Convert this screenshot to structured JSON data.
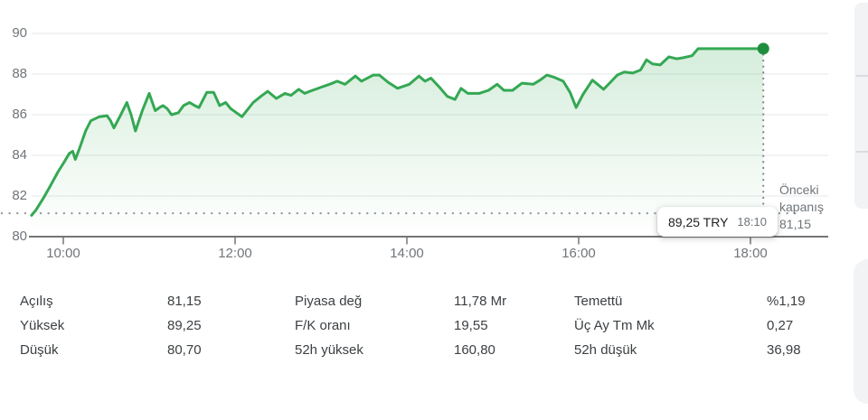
{
  "chart_data": {
    "type": "line",
    "title": "",
    "currency": "TRY",
    "legend": "none",
    "grid": "horizontal-light",
    "x_axis": {
      "unit": "time-of-day",
      "range": [
        9.6,
        18.3
      ],
      "ticks": [
        {
          "t": 10,
          "label": "10:00"
        },
        {
          "t": 12,
          "label": "12:00"
        },
        {
          "t": 14,
          "label": "14:00"
        },
        {
          "t": 16,
          "label": "16:00"
        },
        {
          "t": 18,
          "label": "18:00"
        }
      ]
    },
    "y_axis": {
      "unit": "TRY",
      "range": [
        80,
        90.5
      ],
      "ticks": [
        {
          "v": 90,
          "label": "90"
        },
        {
          "v": 88,
          "label": "88"
        },
        {
          "v": 86,
          "label": "86"
        },
        {
          "v": 84,
          "label": "84"
        },
        {
          "v": 82,
          "label": "82"
        },
        {
          "v": 80,
          "label": "80"
        }
      ]
    },
    "previous_close": {
      "value": 81.15,
      "label": "Önceki\nkapanış\n81,15"
    },
    "last": {
      "price": 89.25,
      "price_label": "89,25 TRY",
      "time_label": "18:10"
    },
    "colors": {
      "line": "#34a853",
      "dot": "#1e8e3e",
      "area_top": "rgba(52,168,83,0.22)",
      "area_bottom": "rgba(52,168,83,0)",
      "grid": "#f1f3f4",
      "axis": "#757575",
      "dotted": "#9aa0a6",
      "crosshair": "#80868b"
    },
    "points": [
      [
        9.63,
        81.05
      ],
      [
        9.68,
        81.3
      ],
      [
        9.77,
        81.9
      ],
      [
        9.85,
        82.5
      ],
      [
        9.94,
        83.2
      ],
      [
        10.0,
        83.6
      ],
      [
        10.07,
        84.1
      ],
      [
        10.11,
        84.2
      ],
      [
        10.14,
        83.8
      ],
      [
        10.19,
        84.35
      ],
      [
        10.26,
        85.2
      ],
      [
        10.32,
        85.7
      ],
      [
        10.42,
        85.9
      ],
      [
        10.51,
        85.95
      ],
      [
        10.55,
        85.7
      ],
      [
        10.59,
        85.35
      ],
      [
        10.67,
        86.0
      ],
      [
        10.74,
        86.6
      ],
      [
        10.79,
        86.0
      ],
      [
        10.84,
        85.2
      ],
      [
        10.92,
        86.2
      ],
      [
        11.0,
        87.05
      ],
      [
        11.07,
        86.2
      ],
      [
        11.12,
        86.35
      ],
      [
        11.16,
        86.45
      ],
      [
        11.21,
        86.3
      ],
      [
        11.26,
        86.0
      ],
      [
        11.34,
        86.1
      ],
      [
        11.4,
        86.45
      ],
      [
        11.47,
        86.6
      ],
      [
        11.53,
        86.45
      ],
      [
        11.58,
        86.35
      ],
      [
        11.67,
        87.1
      ],
      [
        11.75,
        87.1
      ],
      [
        11.82,
        86.45
      ],
      [
        11.89,
        86.6
      ],
      [
        11.95,
        86.3
      ],
      [
        12.08,
        85.9
      ],
      [
        12.21,
        86.6
      ],
      [
        12.3,
        86.9
      ],
      [
        12.38,
        87.15
      ],
      [
        12.48,
        86.8
      ],
      [
        12.58,
        87.05
      ],
      [
        12.65,
        86.95
      ],
      [
        12.74,
        87.25
      ],
      [
        12.81,
        87.05
      ],
      [
        12.87,
        87.15
      ],
      [
        13.0,
        87.35
      ],
      [
        13.1,
        87.5
      ],
      [
        13.19,
        87.65
      ],
      [
        13.28,
        87.5
      ],
      [
        13.4,
        87.9
      ],
      [
        13.47,
        87.65
      ],
      [
        13.61,
        87.95
      ],
      [
        13.68,
        87.95
      ],
      [
        13.78,
        87.6
      ],
      [
        13.89,
        87.3
      ],
      [
        14.03,
        87.5
      ],
      [
        14.14,
        87.9
      ],
      [
        14.21,
        87.65
      ],
      [
        14.28,
        87.8
      ],
      [
        14.38,
        87.35
      ],
      [
        14.47,
        86.9
      ],
      [
        14.56,
        86.75
      ],
      [
        14.63,
        87.3
      ],
      [
        14.71,
        87.05
      ],
      [
        14.84,
        87.05
      ],
      [
        14.95,
        87.2
      ],
      [
        15.05,
        87.5
      ],
      [
        15.13,
        87.2
      ],
      [
        15.23,
        87.2
      ],
      [
        15.34,
        87.55
      ],
      [
        15.47,
        87.5
      ],
      [
        15.55,
        87.7
      ],
      [
        15.63,
        87.95
      ],
      [
        15.71,
        87.85
      ],
      [
        15.82,
        87.65
      ],
      [
        15.9,
        87.1
      ],
      [
        15.97,
        86.35
      ],
      [
        16.05,
        87.0
      ],
      [
        16.16,
        87.7
      ],
      [
        16.22,
        87.5
      ],
      [
        16.29,
        87.25
      ],
      [
        16.37,
        87.6
      ],
      [
        16.45,
        87.95
      ],
      [
        16.53,
        88.1
      ],
      [
        16.63,
        88.05
      ],
      [
        16.72,
        88.2
      ],
      [
        16.79,
        88.7
      ],
      [
        16.86,
        88.5
      ],
      [
        16.95,
        88.45
      ],
      [
        17.05,
        88.85
      ],
      [
        17.14,
        88.75
      ],
      [
        17.21,
        88.8
      ],
      [
        17.32,
        88.9
      ],
      [
        17.39,
        89.25
      ],
      [
        17.6,
        89.25
      ],
      [
        17.85,
        89.25
      ],
      [
        18.05,
        89.25
      ],
      [
        18.15,
        89.25
      ]
    ]
  },
  "stats": {
    "columns": [
      {
        "rows": [
          {
            "label": "Açılış",
            "value": "81,15"
          },
          {
            "label": "Yüksek",
            "value": "89,25"
          },
          {
            "label": "Düşük",
            "value": "80,70"
          }
        ]
      },
      {
        "rows": [
          {
            "label": "Piyasa değ",
            "value": "11,78 Mr"
          },
          {
            "label": "F/K oranı",
            "value": "19,55"
          },
          {
            "label": "52h yüksek",
            "value": "160,80"
          }
        ]
      },
      {
        "rows": [
          {
            "label": "Temettü",
            "value": "%1,19"
          },
          {
            "label": "Üç Ay Tm Mk",
            "value": "0,27"
          },
          {
            "label": "52h düşük",
            "value": "36,98"
          }
        ]
      }
    ]
  }
}
